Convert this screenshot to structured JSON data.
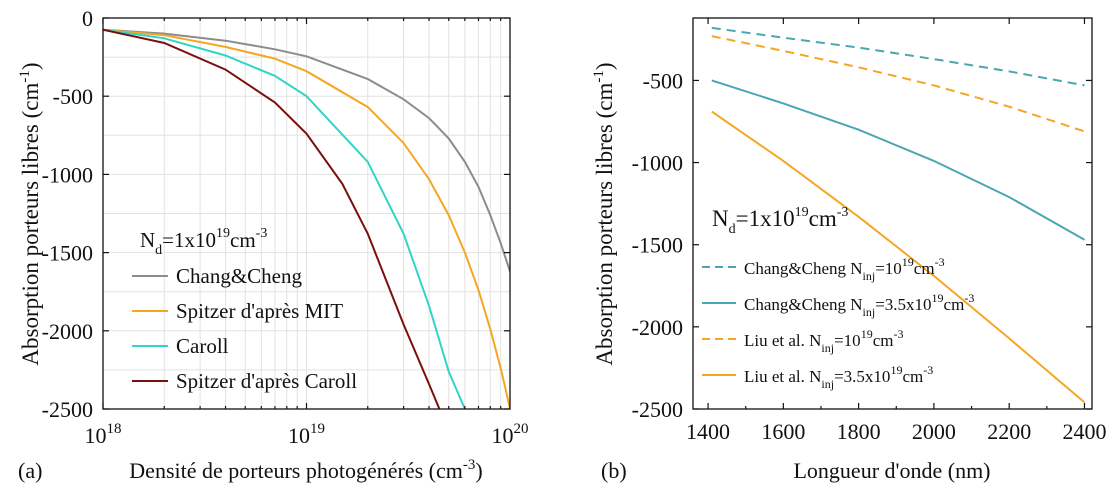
{
  "chart_data": [
    {
      "panel_label": "(a)",
      "type": "line",
      "xlabel": "Densité de porteurs photogénérés (cm",
      "xlabel_sup": "-3",
      "xlabel_end": ")",
      "ylabel": "Absorption porteurs libres (cm",
      "ylabel_sup": "-1",
      "ylabel_end": ")",
      "x_scale": "log",
      "xlim": [
        1e+18,
        1e+20
      ],
      "ylim": [
        -2500,
        0
      ],
      "x_ticks": [
        {
          "value": 1e+18,
          "base": "10",
          "exp": "18"
        },
        {
          "value": 1e+19,
          "base": "10",
          "exp": "19"
        },
        {
          "value": 1e+20,
          "base": "10",
          "exp": "20"
        }
      ],
      "y_ticks": [
        0,
        -500,
        -1000,
        -1500,
        -2000,
        -2500
      ],
      "y_tick_labels": [
        "0",
        "-500",
        "-1000",
        "-1500",
        "-2000",
        "-2500"
      ],
      "grid": true,
      "legend_title": {
        "pre": "N",
        "sub": "d",
        "mid": "=1x10",
        "sup": "19",
        "post": "cm",
        "sup2": "-3"
      },
      "legend_position": "bottom-left",
      "series": [
        {
          "name": "Chang&Cheng",
          "color": "#8c8c8c",
          "dash": "solid",
          "points": [
            [
              1e+18,
              -75
            ],
            [
              2e+18,
              -100
            ],
            [
              4e+18,
              -145
            ],
            [
              7e+18,
              -200
            ],
            [
              1e+19,
              -245
            ],
            [
              2e+19,
              -390
            ],
            [
              3e+19,
              -520
            ],
            [
              4e+19,
              -640
            ],
            [
              5e+19,
              -770
            ],
            [
              6e+19,
              -920
            ],
            [
              7e+19,
              -1080
            ],
            [
              8e+19,
              -1260
            ],
            [
              9e+19,
              -1440
            ],
            [
              1e+20,
              -1620
            ]
          ]
        },
        {
          "name": "Spitzer d'après MIT",
          "color": "#f5a623",
          "dash": "solid",
          "points": [
            [
              1e+18,
              -75
            ],
            [
              2e+18,
              -110
            ],
            [
              4e+18,
              -185
            ],
            [
              7e+18,
              -260
            ],
            [
              1e+19,
              -340
            ],
            [
              2e+19,
              -570
            ],
            [
              3e+19,
              -800
            ],
            [
              4e+19,
              -1030
            ],
            [
              5e+19,
              -1260
            ],
            [
              6e+19,
              -1500
            ],
            [
              7e+19,
              -1740
            ],
            [
              8e+19,
              -1990
            ],
            [
              9e+19,
              -2240
            ],
            [
              9.5e+19,
              -2370
            ],
            [
              1e+20,
              -2500
            ]
          ]
        },
        {
          "name": "Caroll",
          "color": "#30d5c8",
          "dash": "solid",
          "points": [
            [
              1e+18,
              -75
            ],
            [
              2e+18,
              -130
            ],
            [
              4e+18,
              -240
            ],
            [
              7e+18,
              -370
            ],
            [
              1e+19,
              -500
            ],
            [
              2e+19,
              -920
            ],
            [
              3e+19,
              -1380
            ],
            [
              4e+19,
              -1840
            ],
            [
              5e+19,
              -2260
            ],
            [
              6e+19,
              -2500
            ]
          ]
        },
        {
          "name": "Spitzer d'après Caroll",
          "color": "#7a0f0f",
          "dash": "solid",
          "points": [
            [
              1e+18,
              -75
            ],
            [
              2e+18,
              -160
            ],
            [
              4e+18,
              -330
            ],
            [
              7e+18,
              -540
            ],
            [
              1e+19,
              -740
            ],
            [
              1.5e+19,
              -1060
            ],
            [
              2e+19,
              -1380
            ],
            [
              3e+19,
              -1960
            ],
            [
              4e+19,
              -2340
            ],
            [
              4.5e+19,
              -2500
            ]
          ]
        }
      ]
    },
    {
      "panel_label": "(b)",
      "type": "line",
      "xlabel": "Longueur d'onde (nm)",
      "ylabel": "Absorption porteurs libres (cm",
      "ylabel_sup": "-1",
      "ylabel_end": ")",
      "xlim": [
        1360,
        2420
      ],
      "ylim": [
        -2500,
        -120
      ],
      "x_ticks": [
        1400,
        1600,
        1800,
        2000,
        2200,
        2400
      ],
      "x_tick_labels": [
        "1400",
        "1600",
        "1800",
        "2000",
        "2200",
        "2400"
      ],
      "y_ticks": [
        -500,
        -1000,
        -1500,
        -2000,
        -2500
      ],
      "y_tick_labels": [
        "-500",
        "-1000",
        "-1500",
        "-2000",
        "-2500"
      ],
      "grid": false,
      "legend_title": {
        "pre": "N",
        "sub": "d",
        "mid": "=1x10",
        "sup": "19",
        "post": "cm",
        "sup2": "-3"
      },
      "legend_position": "left",
      "series": [
        {
          "name": "Chang&Cheng N",
          "name_sub": "inj",
          "name_mid": "=10",
          "name_sup": "19",
          "name_post": "cm",
          "name_sup2": "-3",
          "color": "#4aa6b0",
          "dash": "dashed",
          "points": [
            [
              1410,
              -180
            ],
            [
              1600,
              -240
            ],
            [
              1800,
              -300
            ],
            [
              2000,
              -370
            ],
            [
              2200,
              -445
            ],
            [
              2400,
              -530
            ]
          ]
        },
        {
          "name": "Chang&Cheng N",
          "name_sub": "inj",
          "name_mid": "=3.5x10",
          "name_sup": "19",
          "name_post": "cm",
          "name_sup2": "-3",
          "color": "#4aa6b0",
          "dash": "solid",
          "points": [
            [
              1410,
              -500
            ],
            [
              1600,
              -640
            ],
            [
              1800,
              -800
            ],
            [
              2000,
              -990
            ],
            [
              2200,
              -1210
            ],
            [
              2400,
              -1470
            ]
          ]
        },
        {
          "name": "Liu et al. N",
          "name_sub": "inj",
          "name_mid": "=10",
          "name_sup": "19",
          "name_post": "cm",
          "name_sup2": "-3",
          "color": "#f5a623",
          "dash": "dashed",
          "points": [
            [
              1410,
              -230
            ],
            [
              1600,
              -320
            ],
            [
              1800,
              -420
            ],
            [
              2000,
              -530
            ],
            [
              2200,
              -660
            ],
            [
              2400,
              -810
            ]
          ]
        },
        {
          "name": "Liu et al. N",
          "name_sub": "inj",
          "name_mid": "=3.5x10",
          "name_sup": "19",
          "name_post": "cm",
          "name_sup2": "-3",
          "color": "#f5a623",
          "dash": "solid",
          "points": [
            [
              1410,
              -690
            ],
            [
              1600,
              -990
            ],
            [
              1800,
              -1330
            ],
            [
              2000,
              -1690
            ],
            [
              2200,
              -2070
            ],
            [
              2400,
              -2460
            ]
          ]
        }
      ]
    }
  ]
}
